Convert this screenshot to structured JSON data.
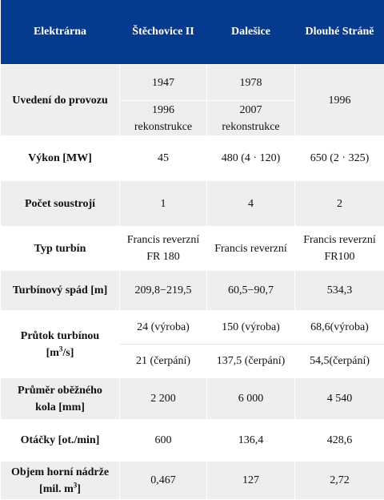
{
  "header": {
    "col0": "Elektrárna",
    "col1": "Štěchovice II",
    "col2": "Dalešice",
    "col3": "Dlouhé Stráně"
  },
  "rows": {
    "uvedeni": {
      "label": "Uvedení do provozu",
      "c1_a": "1947",
      "c1_b1": "1996",
      "c1_b2": "rekonstrukce",
      "c2_a": "1978",
      "c2_b1": "2007",
      "c2_b2": "rekonstrukce",
      "c3": "1996"
    },
    "vykon": {
      "label": "Výkon [MW]",
      "c1": "45",
      "c2": "480 (4 · 120)",
      "c3": "650 (2 · 325)"
    },
    "soustroji": {
      "label": "Počet soustrojí",
      "c1": "1",
      "c2": "4",
      "c3": "2"
    },
    "typ": {
      "label": "Typ turbín",
      "c1_1": "Francis reverzní",
      "c1_2": "FR 180",
      "c2": "Francis reverzní",
      "c3_1": "Francis reverzní",
      "c3_2": "FR100"
    },
    "spad": {
      "label": "Turbínový spád [m]",
      "c1": "209,8−219,5",
      "c2": "60,5−90,7",
      "c3": "534,3"
    },
    "prutok": {
      "label_1": "Průtok turbínou",
      "label_2a": "[m",
      "label_sup": "3",
      "label_2b": "/s]",
      "c1_a": "24 (výroba)",
      "c1_b": "21 (čerpání)",
      "c2_a": "150 (výroba)",
      "c2_b": "137,5 (čerpání)",
      "c3_a": "68,6(výroba)",
      "c3_b": "54,5(čerpání)"
    },
    "prumer": {
      "label_1": "Průměr oběžného",
      "label_2": "kola [mm]",
      "c1": "2 200",
      "c2": "6 000",
      "c3": "4 540"
    },
    "otacky": {
      "label": "Otáčky [ot./min]",
      "c1": "600",
      "c2": "136,4",
      "c3": "428,6"
    },
    "objem": {
      "label_1": "Objem horní nádrže",
      "label_2a": "[mil. m",
      "label_sup": "3",
      "label_2b": "]",
      "c1": "0,467",
      "c2": "127",
      "c3": "2,72"
    }
  }
}
